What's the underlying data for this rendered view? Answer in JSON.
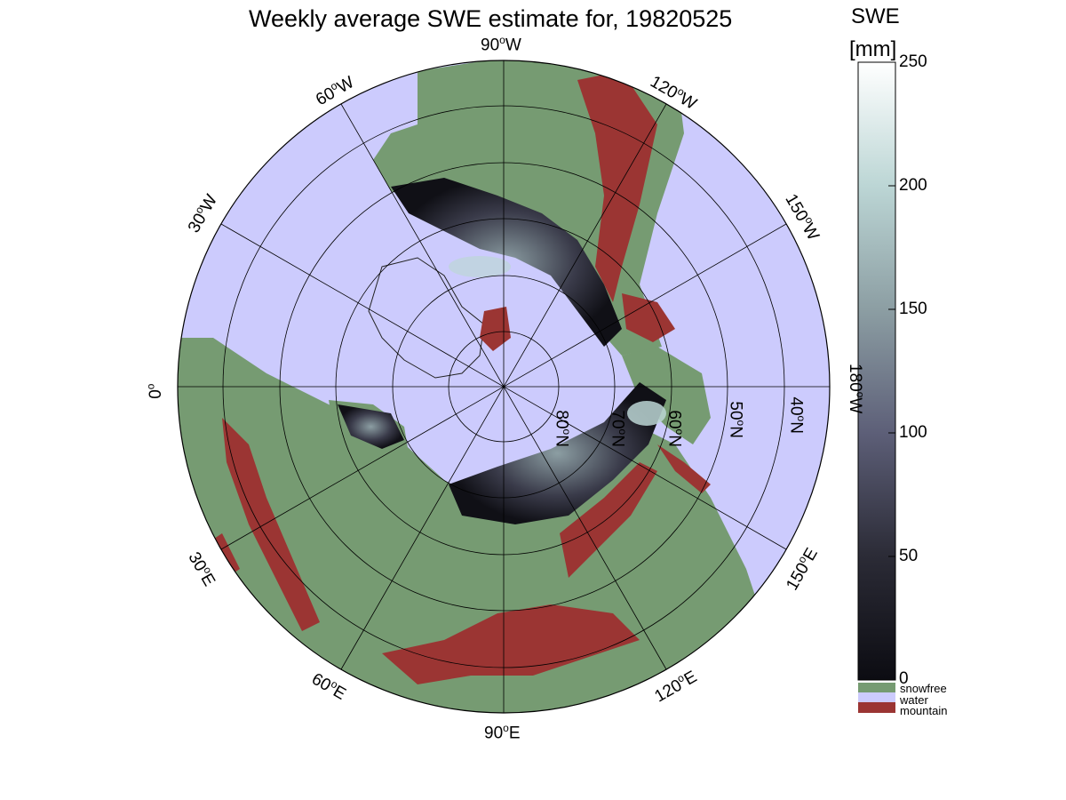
{
  "title": "Weekly average SWE estimate for, 19820525",
  "colorbar": {
    "label_line1": "SWE",
    "label_line2": "[mm]",
    "ticks": [
      "250",
      "200",
      "150",
      "100",
      "50",
      "0"
    ],
    "categories": [
      {
        "label": "snowfree",
        "color": "#769b72"
      },
      {
        "label": "water",
        "color": "#cccbfd"
      },
      {
        "label": "mountain",
        "color": "#9b3533"
      }
    ]
  },
  "map_labels": {
    "lon_90W": "90",
    "lon_60W": "60",
    "lon_120W": "120",
    "lon_30W": "30",
    "lon_150W": "150",
    "lon_0": "0",
    "lon_180W": "180",
    "lon_30E": "30",
    "lon_150E": "150",
    "lon_60E": "60",
    "lon_120E": "120",
    "lon_90E": "90",
    "lat_80N": "80",
    "lat_70N": "70",
    "lat_60N": "60",
    "lat_50N": "50",
    "lat_40N": "40",
    "deg": "o",
    "W": "W",
    "E": "E",
    "N": "N"
  },
  "colors": {
    "land_snowfree": "#769b72",
    "water": "#cccbfd",
    "mountain": "#9b3533",
    "snow_low": "#0c0c12",
    "snow_high": "#ffffff"
  }
}
